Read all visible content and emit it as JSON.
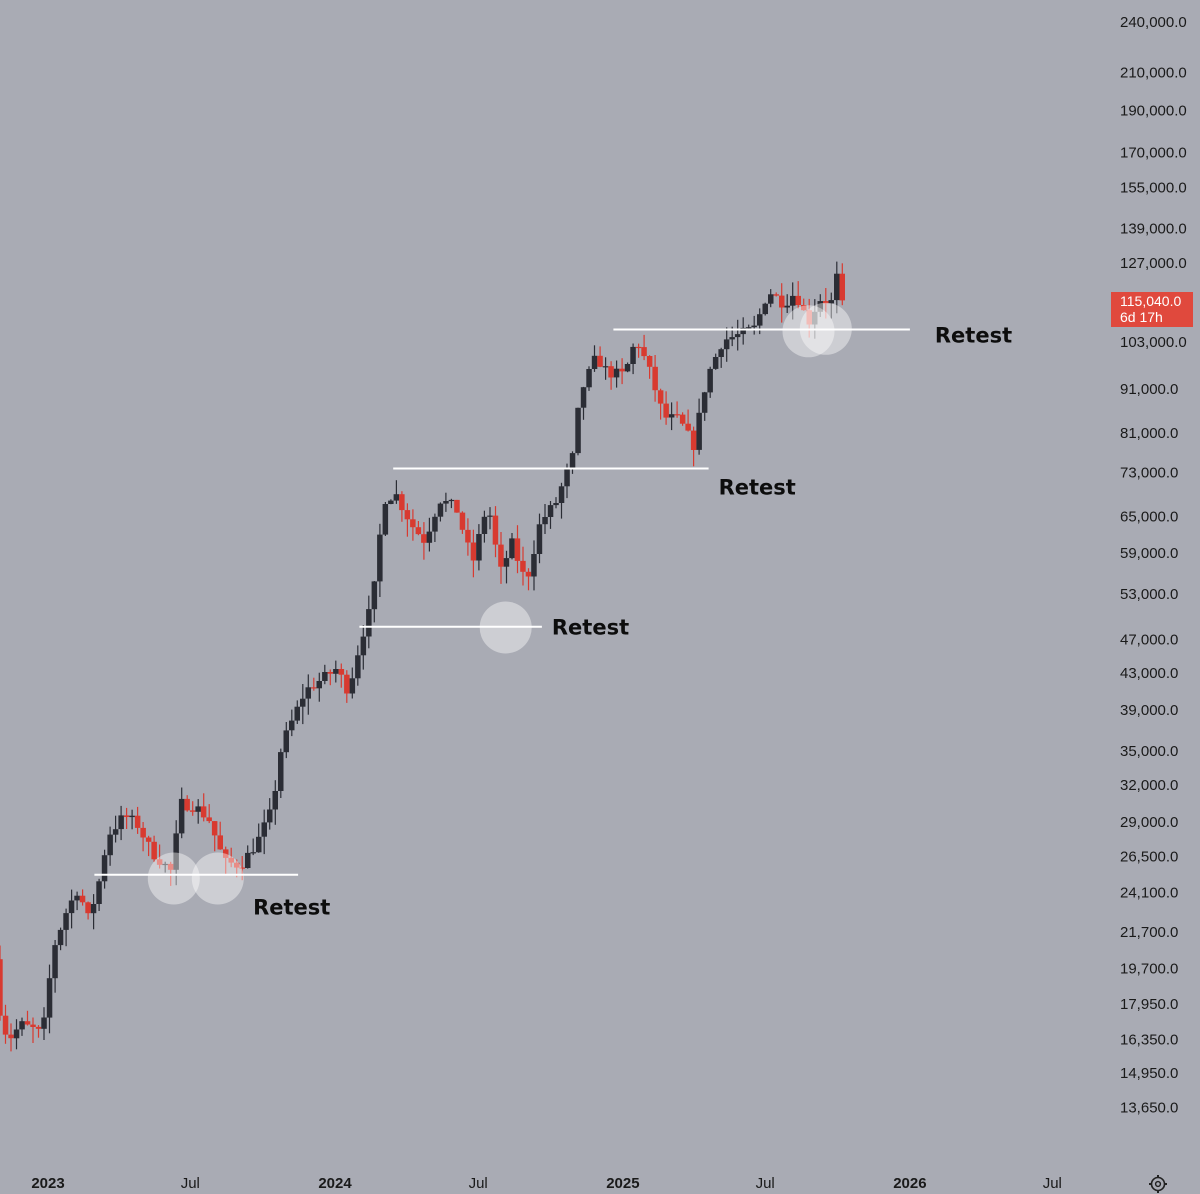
{
  "chart_data": {
    "type": "candlestick",
    "interval": "weekly",
    "y_scale": "log",
    "ylim": [
      12800,
      245000
    ],
    "grid": false,
    "colors": {
      "background": "#a9abb4",
      "up": "#2b2d35",
      "down": "#d83a30",
      "levels": "#ffffff",
      "badge": "#e0493d"
    },
    "y_ticks": [
      "240,000.0",
      "210,000.0",
      "190,000.0",
      "170,000.0",
      "155,000.0",
      "139,000.0",
      "127,000.0",
      "103,000.0",
      "91,000.0",
      "81,000.0",
      "73,000.0",
      "65,000.0",
      "59,000.0",
      "53,000.0",
      "47,000.0",
      "43,000.0",
      "39,000.0",
      "35,000.0",
      "32,000.0",
      "29,000.0",
      "26,500.0",
      "24,100.0",
      "21,700.0",
      "19,700.0",
      "17,950.0",
      "16,350.0",
      "14,950.0",
      "13,650.0"
    ],
    "x_ticks": [
      {
        "label": "2023",
        "date": "2023-01-01",
        "bold": true
      },
      {
        "label": "Jul",
        "date": "2023-07-01",
        "bold": false
      },
      {
        "label": "2024",
        "date": "2024-01-01",
        "bold": true
      },
      {
        "label": "Jul",
        "date": "2024-07-01",
        "bold": false
      },
      {
        "label": "2025",
        "date": "2025-01-01",
        "bold": true
      },
      {
        "label": "Jul",
        "date": "2025-07-01",
        "bold": false
      },
      {
        "label": "2026",
        "date": "2026-01-01",
        "bold": true
      },
      {
        "label": "Jul",
        "date": "2026-07-01",
        "bold": false
      }
    ],
    "x_range": [
      "2022-11-01",
      "2026-11-15"
    ],
    "anchor_points": [
      [
        "2022-11-01",
        20200
      ],
      [
        "2022-11-10",
        17000
      ],
      [
        "2022-11-20",
        16400
      ],
      [
        "2022-12-05",
        17000
      ],
      [
        "2022-12-20",
        16800
      ],
      [
        "2023-01-01",
        16550
      ],
      [
        "2023-01-15",
        20800
      ],
      [
        "2023-02-01",
        23000
      ],
      [
        "2023-02-15",
        24300
      ],
      [
        "2023-03-01",
        22400
      ],
      [
        "2023-03-15",
        25000
      ],
      [
        "2023-03-25",
        28000
      ],
      [
        "2023-04-15",
        29500
      ],
      [
        "2023-05-01",
        28900
      ],
      [
        "2023-05-20",
        26800
      ],
      [
        "2023-06-15",
        25400
      ],
      [
        "2023-06-25",
        30500
      ],
      [
        "2023-07-15",
        30200
      ],
      [
        "2023-08-01",
        29200
      ],
      [
        "2023-08-20",
        26100
      ],
      [
        "2023-09-10",
        25900
      ],
      [
        "2023-10-01",
        27500
      ],
      [
        "2023-10-20",
        30000
      ],
      [
        "2023-11-01",
        35500
      ],
      [
        "2023-12-01",
        41000
      ],
      [
        "2024-01-10",
        43500
      ],
      [
        "2024-01-25",
        41000
      ],
      [
        "2024-02-10",
        47000
      ],
      [
        "2024-02-25",
        52000
      ],
      [
        "2024-03-10",
        68000
      ],
      [
        "2024-03-25",
        69000
      ],
      [
        "2024-04-15",
        63500
      ],
      [
        "2024-05-01",
        61000
      ],
      [
        "2024-05-20",
        68000
      ],
      [
        "2024-06-10",
        66500
      ],
      [
        "2024-07-01",
        57500
      ],
      [
        "2024-07-20",
        67500
      ],
      [
        "2024-08-05",
        56000
      ],
      [
        "2024-08-20",
        60500
      ],
      [
        "2024-09-07",
        54500
      ],
      [
        "2024-09-25",
        64000
      ],
      [
        "2024-10-15",
        67500
      ],
      [
        "2024-11-05",
        76000
      ],
      [
        "2024-11-15",
        90000
      ],
      [
        "2024-12-05",
        99000
      ],
      [
        "2024-12-20",
        95000
      ],
      [
        "2025-01-10",
        94500
      ],
      [
        "2025-01-25",
        104000
      ],
      [
        "2025-02-10",
        96000
      ],
      [
        "2025-03-01",
        84500
      ],
      [
        "2025-03-20",
        84000
      ],
      [
        "2025-04-08",
        78500
      ],
      [
        "2025-04-25",
        94000
      ],
      [
        "2025-05-15",
        103500
      ],
      [
        "2025-06-05",
        105000
      ],
      [
        "2025-06-25",
        107000
      ],
      [
        "2025-07-12",
        118000
      ],
      [
        "2025-08-01",
        114000
      ],
      [
        "2025-08-15",
        117500
      ],
      [
        "2025-09-01",
        108500
      ],
      [
        "2025-09-15",
        115500
      ],
      [
        "2025-09-30",
        114500
      ],
      [
        "2025-10-06",
        123500
      ],
      [
        "2025-10-13",
        115040
      ]
    ],
    "last_price": {
      "value": 115040,
      "label": "115,040.0",
      "countdown": "6d 17h"
    },
    "levels": [
      {
        "price": 25250,
        "from": "2023-03-01",
        "to": "2023-11-15",
        "label": "Retest"
      },
      {
        "price": 48600,
        "from": "2024-02-01",
        "to": "2024-09-20",
        "label": "Retest"
      },
      {
        "price": 73800,
        "from": "2024-03-15",
        "to": "2025-04-20",
        "label": "Retest"
      },
      {
        "price": 106500,
        "from": "2024-12-20",
        "to": "2026-01-01",
        "label": "Retest"
      }
    ],
    "retest_circles": [
      {
        "date": "2023-06-10",
        "price": 25000
      },
      {
        "date": "2023-08-05",
        "price": 25000
      },
      {
        "date": "2024-08-05",
        "price": 48500
      },
      {
        "date": "2025-08-25",
        "price": 106000
      },
      {
        "date": "2025-09-16",
        "price": 106700
      }
    ]
  },
  "toolbar": {
    "settings_icon": "settings-gear-icon"
  }
}
